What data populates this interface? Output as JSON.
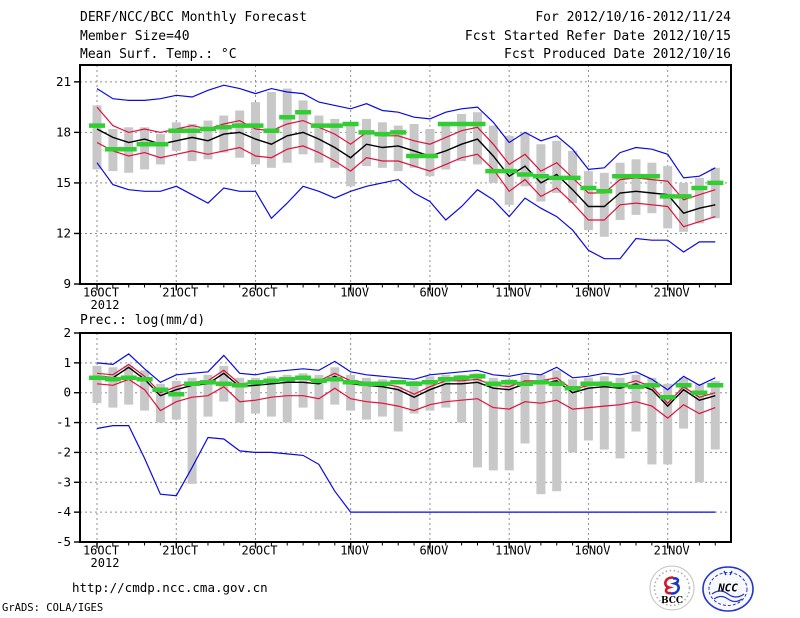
{
  "header": {
    "title": "DERF/NCC/BCC Monthly Forecast",
    "member_size": "Member Size=40",
    "for_range": "For 2012/10/16-2012/11/24",
    "fcst_started": "Fcst Started Refer Date 2012/10/15",
    "fcst_produced": "Fcst Produced Date 2012/10/16"
  },
  "footer": {
    "url": "http://cmdp.ncc.cma.gov.cn",
    "credit": "GrADS: COLA/IGES",
    "logos": {
      "bcc": "BCC",
      "ncc": "NCC"
    }
  },
  "colors": {
    "blue": "#0a0ae0",
    "red": "#e0103c",
    "black": "#000000",
    "green": "#32cd32",
    "bar": "#c8c8c8",
    "grid": "#8e8e8e"
  },
  "chart_data": [
    {
      "type": "line",
      "title": "Mean Surf. Temp.: °C",
      "x_tick_labels": [
        "16OCT",
        "21OCT",
        "26OCT",
        "1NOV",
        "6NOV",
        "11NOV",
        "16NOV",
        "21NOV"
      ],
      "x_tick_days": [
        0,
        5,
        10,
        16,
        21,
        26,
        31,
        36
      ],
      "year": "2012",
      "n_days": 40,
      "ylim": [
        9,
        22
      ],
      "y_ticks": [
        21,
        18,
        15,
        12,
        9
      ],
      "grid": "dashed",
      "legend": "none",
      "series": [
        {
          "name": "ensemble-max",
          "color": "blue",
          "values": [
            20.6,
            20.0,
            19.9,
            19.9,
            20.0,
            20.2,
            20.1,
            20.5,
            20.8,
            20.6,
            20.3,
            20.6,
            20.4,
            20.3,
            19.8,
            19.6,
            19.4,
            19.7,
            19.3,
            19.2,
            18.9,
            18.8,
            19.2,
            19.4,
            19.5,
            18.6,
            17.4,
            18.0,
            17.5,
            17.8,
            17.0,
            15.8,
            15.9,
            16.8,
            17.1,
            17.0,
            16.7,
            15.3,
            15.4,
            15.9
          ]
        },
        {
          "name": "spread-upper",
          "color": "red",
          "values": [
            19.5,
            18.4,
            18.0,
            18.2,
            18.0,
            18.2,
            18.4,
            18.2,
            18.5,
            18.7,
            18.2,
            18.1,
            18.5,
            18.7,
            18.3,
            17.9,
            17.3,
            18.0,
            17.8,
            17.8,
            17.5,
            17.3,
            17.7,
            18.1,
            18.3,
            17.3,
            16.1,
            16.7,
            15.7,
            16.2,
            15.3,
            14.4,
            14.4,
            15.2,
            15.3,
            15.2,
            15.1,
            14.0,
            14.3,
            14.6
          ]
        },
        {
          "name": "ensemble-mean",
          "color": "black",
          "values": [
            18.2,
            17.7,
            17.4,
            17.6,
            17.3,
            17.5,
            17.7,
            17.5,
            17.9,
            18.0,
            17.6,
            17.3,
            17.8,
            18.0,
            17.6,
            17.1,
            16.5,
            17.3,
            17.1,
            17.2,
            16.9,
            16.6,
            16.9,
            17.3,
            17.6,
            16.6,
            15.4,
            16.0,
            15.0,
            15.5,
            14.6,
            13.6,
            13.6,
            14.4,
            14.5,
            14.4,
            14.3,
            13.2,
            13.5,
            13.7
          ]
        },
        {
          "name": "spread-lower",
          "color": "red",
          "values": [
            17.4,
            16.9,
            16.6,
            16.8,
            16.5,
            16.7,
            16.9,
            16.7,
            16.9,
            17.1,
            16.6,
            16.5,
            17.0,
            17.2,
            16.8,
            16.3,
            15.7,
            16.5,
            16.3,
            16.3,
            16.0,
            15.7,
            16.1,
            16.5,
            16.7,
            15.8,
            14.5,
            15.2,
            14.2,
            14.7,
            13.8,
            12.8,
            12.8,
            13.7,
            13.8,
            13.7,
            13.6,
            12.4,
            12.7,
            13.0
          ]
        },
        {
          "name": "ensemble-min",
          "color": "blue",
          "values": [
            16.2,
            14.9,
            14.6,
            14.5,
            14.5,
            14.8,
            14.3,
            13.8,
            14.7,
            14.5,
            14.5,
            12.9,
            13.8,
            14.8,
            14.5,
            14.1,
            14.5,
            14.8,
            15.0,
            15.2,
            14.4,
            13.9,
            12.8,
            13.6,
            14.6,
            14.0,
            13.0,
            14.1,
            13.5,
            13.0,
            12.2,
            11.0,
            10.5,
            10.5,
            11.7,
            11.6,
            11.6,
            10.9,
            11.5,
            11.5
          ]
        },
        {
          "name": "reference-green-dash",
          "color": "green",
          "style": "thick-dash",
          "values": [
            18.4,
            17.0,
            17.0,
            17.3,
            17.3,
            18.1,
            18.1,
            18.2,
            18.3,
            18.4,
            18.4,
            18.1,
            18.9,
            19.2,
            18.4,
            18.4,
            18.5,
            18.0,
            17.9,
            18.0,
            16.6,
            16.6,
            18.5,
            18.5,
            18.5,
            15.7,
            15.7,
            15.5,
            15.4,
            15.3,
            15.3,
            14.7,
            14.5,
            15.4,
            15.4,
            15.4,
            14.2,
            14.2,
            14.7,
            15.0
          ]
        }
      ],
      "member_spread_bars": {
        "top": [
          19.6,
          18.2,
          18.3,
          18.3,
          17.9,
          18.6,
          18.5,
          18.7,
          19.0,
          19.3,
          19.8,
          20.4,
          20.6,
          19.9,
          19.0,
          18.8,
          18.6,
          18.8,
          18.6,
          18.4,
          18.5,
          18.2,
          18.6,
          19.1,
          19.2,
          18.4,
          17.8,
          18.0,
          17.3,
          17.5,
          16.9,
          15.7,
          15.6,
          16.2,
          16.4,
          16.2,
          16.0,
          15.0,
          15.3,
          15.9
        ],
        "bottom": [
          15.8,
          15.7,
          15.6,
          15.8,
          16.1,
          16.9,
          16.3,
          16.4,
          16.8,
          16.5,
          16.1,
          15.9,
          16.2,
          16.7,
          16.2,
          15.9,
          14.8,
          16.0,
          15.9,
          15.7,
          15.9,
          15.4,
          15.8,
          16.3,
          16.1,
          15.0,
          13.7,
          14.8,
          13.9,
          14.4,
          13.8,
          12.2,
          11.8,
          12.8,
          13.1,
          13.2,
          12.3,
          12.1,
          12.6,
          12.9
        ]
      }
    },
    {
      "type": "line",
      "title": "Prec.: log(mm/d)",
      "x_tick_labels": [
        "16OCT",
        "21OCT",
        "26OCT",
        "1NOV",
        "6NOV",
        "11NOV",
        "16NOV",
        "21NOV"
      ],
      "x_tick_days": [
        0,
        5,
        10,
        16,
        21,
        26,
        31,
        36
      ],
      "year": "2012",
      "n_days": 40,
      "ylim": [
        -5,
        2
      ],
      "y_ticks": [
        2,
        1,
        0,
        -1,
        -2,
        -3,
        -4,
        -5
      ],
      "grid": "dashed",
      "legend": "none",
      "series": [
        {
          "name": "ensemble-max",
          "color": "blue",
          "values": [
            1.0,
            0.95,
            1.3,
            0.8,
            0.35,
            0.6,
            0.65,
            0.7,
            1.25,
            0.65,
            0.6,
            0.7,
            0.75,
            0.8,
            0.75,
            1.05,
            0.7,
            0.6,
            0.55,
            0.5,
            0.45,
            0.6,
            0.65,
            0.7,
            0.75,
            0.6,
            0.55,
            0.65,
            0.6,
            0.85,
            0.5,
            0.55,
            0.65,
            0.6,
            0.7,
            0.45,
            0.1,
            0.55,
            0.25,
            0.5
          ]
        },
        {
          "name": "spread-upper",
          "color": "red",
          "values": [
            0.65,
            0.6,
            0.95,
            0.55,
            0.0,
            0.2,
            0.35,
            0.4,
            0.75,
            0.3,
            0.35,
            0.4,
            0.45,
            0.45,
            0.4,
            0.65,
            0.4,
            0.35,
            0.3,
            0.2,
            -0.05,
            0.2,
            0.4,
            0.4,
            0.45,
            0.25,
            0.2,
            0.4,
            0.4,
            0.5,
            0.1,
            0.25,
            0.3,
            0.25,
            0.4,
            0.2,
            -0.35,
            0.2,
            -0.15,
            0.0
          ]
        },
        {
          "name": "ensemble-mean",
          "color": "black",
          "values": [
            0.55,
            0.5,
            0.85,
            0.45,
            -0.1,
            0.1,
            0.25,
            0.3,
            0.65,
            0.2,
            0.25,
            0.3,
            0.35,
            0.35,
            0.3,
            0.55,
            0.3,
            0.25,
            0.2,
            0.1,
            -0.15,
            0.1,
            0.3,
            0.3,
            0.35,
            0.15,
            0.1,
            0.3,
            0.3,
            0.4,
            0.0,
            0.15,
            0.2,
            0.15,
            0.3,
            0.1,
            -0.45,
            0.1,
            -0.25,
            -0.1
          ]
        },
        {
          "name": "spread-lower",
          "color": "red",
          "values": [
            0.3,
            0.25,
            0.45,
            0.1,
            -0.6,
            -0.3,
            -0.15,
            -0.1,
            0.2,
            -0.3,
            -0.25,
            -0.15,
            -0.1,
            -0.1,
            -0.2,
            0.15,
            -0.2,
            -0.3,
            -0.35,
            -0.45,
            -0.6,
            -0.4,
            -0.3,
            -0.25,
            -0.2,
            -0.5,
            -0.55,
            -0.3,
            -0.35,
            -0.25,
            -0.55,
            -0.5,
            -0.45,
            -0.4,
            -0.3,
            -0.45,
            -0.85,
            -0.4,
            -0.7,
            -0.5
          ]
        },
        {
          "name": "ensemble-min",
          "color": "blue",
          "values": [
            -1.2,
            -1.1,
            -1.1,
            -2.2,
            -3.4,
            -3.45,
            -2.5,
            -1.5,
            -1.55,
            -1.95,
            -2.0,
            -2.0,
            -2.05,
            -2.1,
            -2.4,
            -3.3,
            -4.0,
            -4.0,
            -4.0,
            -4.0,
            -4.0,
            -4.0,
            -4.0,
            -4.0,
            -4.0,
            -4.0,
            -4.0,
            -4.0,
            -4.0,
            -4.0,
            -4.0,
            -4.0,
            -4.0,
            -4.0,
            -4.0,
            -4.0,
            -4.0,
            -4.0,
            -4.0,
            -4.0
          ]
        },
        {
          "name": "reference-green-dash",
          "color": "green",
          "style": "thick-dash",
          "values": [
            0.5,
            0.45,
            0.5,
            0.45,
            0.1,
            -0.05,
            0.3,
            0.35,
            0.3,
            0.25,
            0.35,
            0.4,
            0.45,
            0.5,
            0.4,
            0.45,
            0.35,
            0.3,
            0.3,
            0.35,
            0.3,
            0.35,
            0.45,
            0.5,
            0.55,
            0.3,
            0.35,
            0.3,
            0.35,
            0.3,
            0.15,
            0.3,
            0.3,
            0.25,
            0.2,
            0.25,
            -0.15,
            0.25,
            0.0,
            0.25
          ]
        }
      ],
      "member_spread_bars": {
        "top": [
          0.9,
          0.85,
          0.9,
          0.75,
          0.3,
          0.4,
          0.5,
          0.6,
          0.9,
          0.5,
          0.5,
          0.55,
          0.6,
          0.65,
          0.6,
          0.85,
          0.6,
          0.5,
          0.45,
          0.2,
          0.4,
          0.55,
          0.6,
          0.6,
          0.65,
          0.5,
          0.45,
          0.6,
          0.6,
          0.75,
          0.45,
          0.5,
          0.55,
          0.5,
          0.6,
          0.5,
          0.3,
          0.5,
          0.3,
          0.4
        ],
        "bottom": [
          -0.35,
          -0.5,
          -0.4,
          -0.6,
          -1.0,
          -0.9,
          -3.05,
          -0.8,
          -0.3,
          -1.0,
          -0.7,
          -0.8,
          -1.0,
          -0.5,
          -0.9,
          -0.4,
          -0.6,
          -0.9,
          -0.8,
          -1.3,
          -0.7,
          -0.6,
          -0.5,
          -1.0,
          -2.5,
          -2.6,
          -2.6,
          -1.7,
          -3.4,
          -3.3,
          -2.0,
          -1.6,
          -1.9,
          -2.2,
          -1.3,
          -2.4,
          -2.4,
          -1.2,
          -3.0,
          -1.9
        ]
      }
    }
  ]
}
